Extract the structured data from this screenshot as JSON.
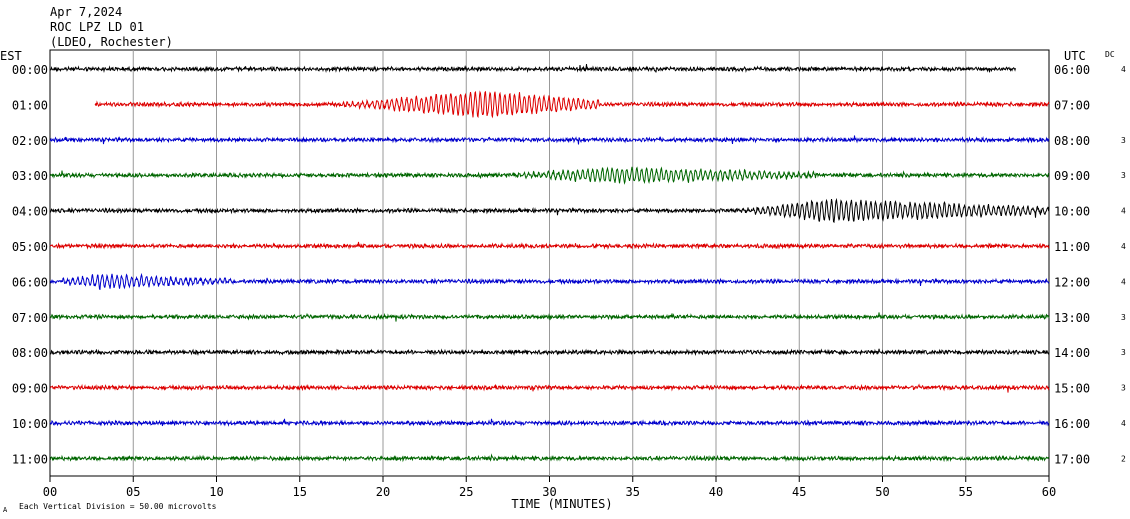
{
  "header": {
    "date": "Apr 7,2024",
    "station": "ROC LPZ LD 01",
    "network": "(LDEO, Rochester)"
  },
  "labels": {
    "left_zone": "EST",
    "right_zone": "UTC",
    "dc": "DC",
    "footer_mark": "A",
    "scale_note": "Each Vertical Division =   50.00 microvolts"
  },
  "chart_data": {
    "type": "line",
    "title": "",
    "xlabel": "TIME (MINUTES)",
    "xlim": [
      0,
      60
    ],
    "x_ticks": [
      "00",
      "05",
      "10",
      "15",
      "20",
      "25",
      "30",
      "35",
      "40",
      "45",
      "50",
      "55",
      "60"
    ],
    "grid": "vertical every 5 minutes",
    "colors": [
      "#000000",
      "#dd0000",
      "#0000cc",
      "#006600"
    ],
    "rows": [
      {
        "left": "00:00",
        "right": "06:00",
        "dc": "4",
        "start": 0,
        "end": 58
      },
      {
        "left": "01:00",
        "right": "07:00",
        "dc": "",
        "start": 2.7,
        "end": 60
      },
      {
        "left": "02:00",
        "right": "08:00",
        "dc": "3",
        "start": 0,
        "end": 60
      },
      {
        "left": "03:00",
        "right": "09:00",
        "dc": "3",
        "start": 0,
        "end": 60
      },
      {
        "left": "04:00",
        "right": "10:00",
        "dc": "4",
        "start": 0,
        "end": 60
      },
      {
        "left": "05:00",
        "right": "11:00",
        "dc": "4",
        "start": 0,
        "end": 60
      },
      {
        "left": "06:00",
        "right": "12:00",
        "dc": "4",
        "start": 0,
        "end": 60
      },
      {
        "left": "07:00",
        "right": "13:00",
        "dc": "3",
        "start": 0,
        "end": 60
      },
      {
        "left": "08:00",
        "right": "14:00",
        "dc": "3",
        "start": 0,
        "end": 60
      },
      {
        "left": "09:00",
        "right": "15:00",
        "dc": "3",
        "start": 0,
        "end": 60
      },
      {
        "left": "10:00",
        "right": "16:00",
        "dc": "4",
        "start": 0,
        "end": 60
      },
      {
        "left": "11:00",
        "right": "17:00",
        "dc": "2",
        "start": 0,
        "end": 60
      }
    ],
    "events": [
      {
        "row": 1,
        "start": 17,
        "end": 33,
        "peak": 26,
        "note": "large oscillation packet"
      },
      {
        "row": 3,
        "start": 27,
        "end": 46,
        "peak": 34,
        "note": "moderate oscillation"
      },
      {
        "row": 4,
        "start": 41,
        "end": 60,
        "peak": 47,
        "note": "strong oscillation"
      },
      {
        "row": 6,
        "start": 0,
        "end": 11,
        "peak": 3,
        "note": "moderate oscillation"
      }
    ]
  }
}
